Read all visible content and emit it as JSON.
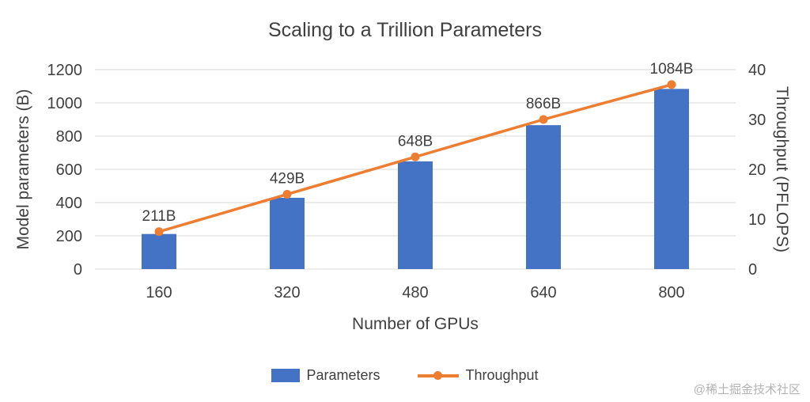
{
  "title": "Scaling to a Trillion Parameters",
  "watermark": "@稀土掘金技术社区",
  "legend": [
    {
      "label": "Parameters",
      "type": "bar",
      "color": "#4472C4"
    },
    {
      "label": "Throughput",
      "type": "line",
      "color": "#ED7D31"
    }
  ],
  "chart_data": {
    "type": "bar",
    "subtype": "combo-bar-line",
    "title": "Scaling to a Trillion Parameters",
    "categories": [
      "160",
      "320",
      "480",
      "640",
      "800"
    ],
    "xlabel": "Number of GPUs",
    "grid": true,
    "legend_position": "bottom",
    "left_axis": {
      "label": "Model parameters (B)",
      "min": 0,
      "max": 1200,
      "step": 200
    },
    "right_axis": {
      "label": "Throughput (PFLOPS)",
      "min": 0,
      "max": 40,
      "step": 10
    },
    "series": [
      {
        "name": "Parameters",
        "type": "bar",
        "axis": "left",
        "color": "#4472C4",
        "values": [
          211,
          429,
          648,
          866,
          1084
        ]
      },
      {
        "name": "Throughput",
        "type": "line",
        "axis": "right",
        "color": "#ED7D31",
        "values": [
          7.5,
          15,
          22.5,
          30,
          37
        ],
        "labels": [
          "211B",
          "429B",
          "648B",
          "866B",
          "1084B"
        ]
      }
    ]
  }
}
